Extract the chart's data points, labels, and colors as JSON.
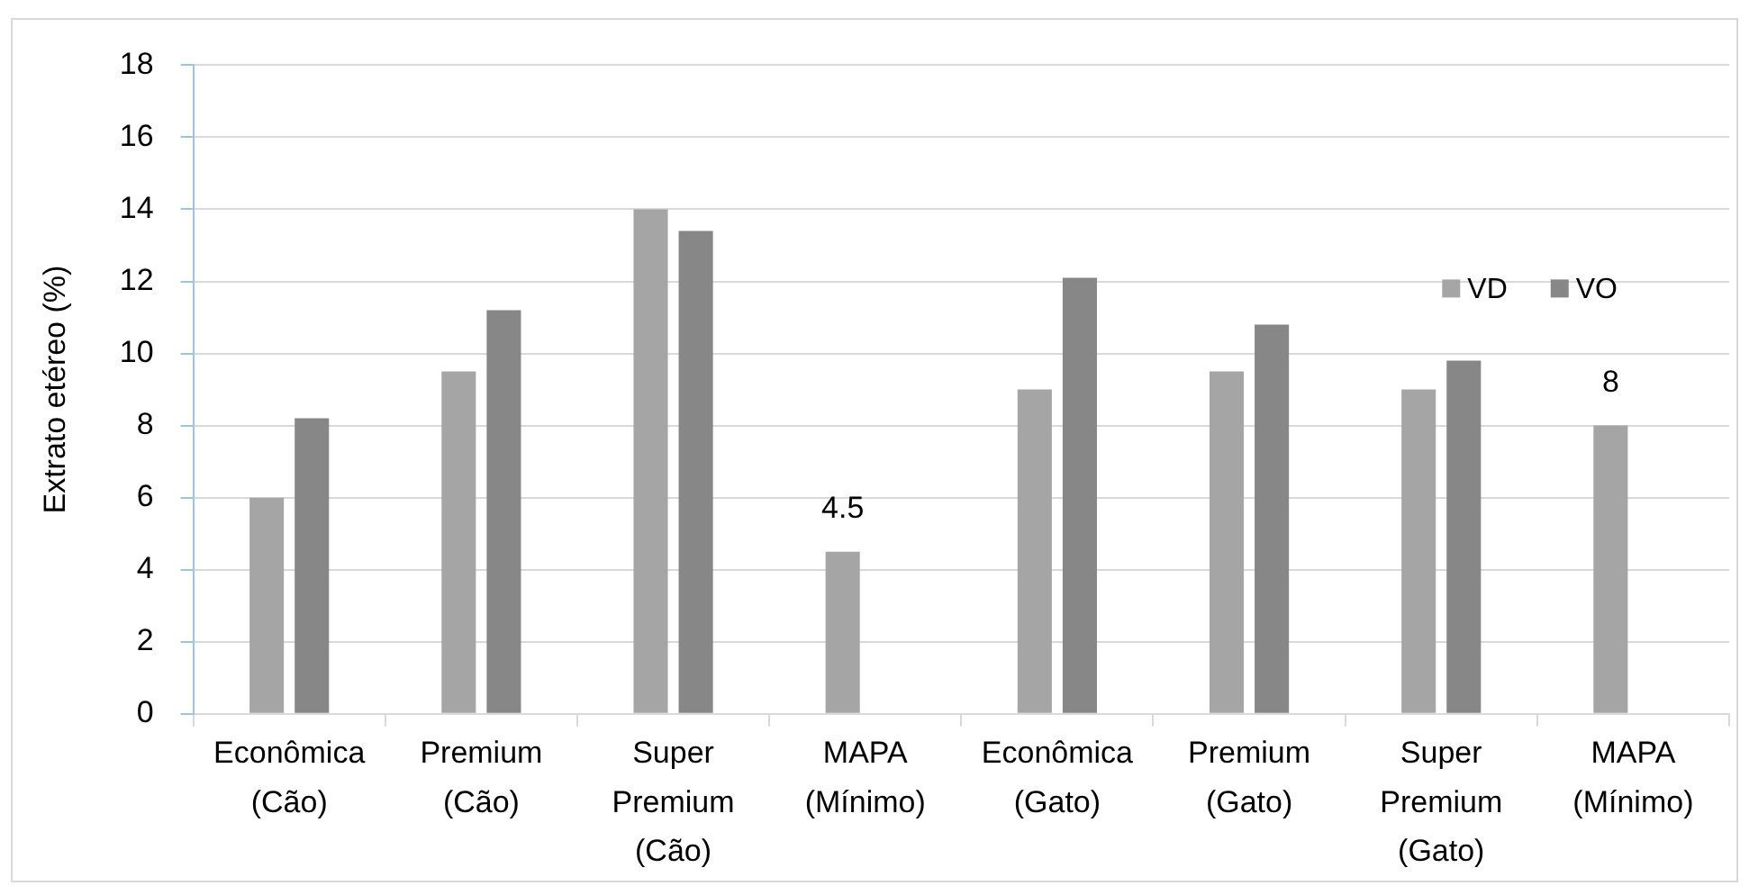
{
  "chart_data": {
    "type": "bar",
    "ylabel": "Extrato etéreo (%)",
    "categories": [
      "Econômica (Cão)",
      "Premium (Cão)",
      "Super Premium (Cão)",
      "MAPA (Mínimo)",
      "Econômica (Gato)",
      "Premium (Gato)",
      "Super Premium (Gato)",
      "MAPA (Mínimo)"
    ],
    "series": [
      {
        "name": "VD",
        "color": "#a5a5a5",
        "values": [
          6,
          9.5,
          14,
          4.5,
          9,
          9.5,
          9,
          8
        ],
        "value_labels": [
          null,
          null,
          null,
          "4.5",
          null,
          null,
          null,
          "8"
        ]
      },
      {
        "name": "VO",
        "color": "#878787",
        "values": [
          8.2,
          11.2,
          13.4,
          null,
          12.1,
          10.8,
          9.8,
          null
        ]
      }
    ],
    "ylim": [
      0,
      18
    ],
    "yticks": [
      0,
      2,
      4,
      6,
      8,
      10,
      12,
      14,
      16,
      18
    ],
    "grid": "y",
    "legend": "top right"
  }
}
